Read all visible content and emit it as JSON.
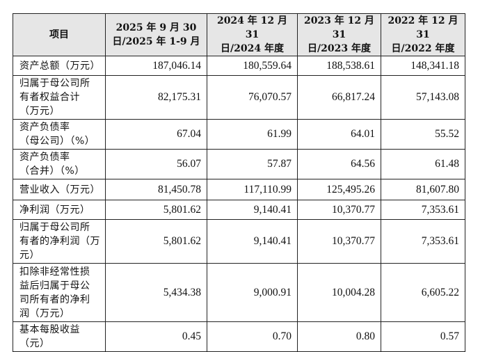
{
  "table": {
    "headers": {
      "item": "项目",
      "col1_line1": "2025 年 9 月 30",
      "col1_line2": "日/2025 年 1-9 月",
      "col2_line1": "2024 年 12 月 31",
      "col2_line2": "日/2024 年度",
      "col3_line1": "2023 年 12 月 31",
      "col3_line2": "日/2023 年度",
      "col4_line1": "2022 年 12 月 31",
      "col4_line2": "日/2022 年度"
    },
    "rows": [
      {
        "label_lines": [
          "资产总额（万元）"
        ],
        "values": [
          "187,046.14",
          "180,559.64",
          "188,538.61",
          "148,341.18"
        ]
      },
      {
        "label_lines": [
          "归属于母公司所",
          "有者权益合计",
          "（万元）"
        ],
        "values": [
          "82,175.31",
          "76,070.57",
          "66,817.24",
          "57,143.08"
        ]
      },
      {
        "label_lines": [
          "资产负债率",
          "（母公司）（%）"
        ],
        "values": [
          "67.04",
          "61.99",
          "64.01",
          "55.52"
        ]
      },
      {
        "label_lines": [
          "资产负债率",
          "（合并）（%）"
        ],
        "values": [
          "56.07",
          "57.87",
          "64.56",
          "61.48"
        ]
      },
      {
        "label_lines": [
          "营业收入（万元）"
        ],
        "values": [
          "81,450.78",
          "117,110.99",
          "125,495.26",
          "81,607.80"
        ]
      },
      {
        "label_lines": [
          "净利润（万元）"
        ],
        "values": [
          "5,801.62",
          "9,140.41",
          "10,370.77",
          "7,353.61"
        ]
      },
      {
        "label_lines": [
          "归属于母公司所",
          "有者的净利润（万",
          "元）"
        ],
        "values": [
          "5,801.62",
          "9,140.41",
          "10,370.77",
          "7,353.61"
        ]
      },
      {
        "label_lines": [
          "扣除非经常性损",
          "益后归属于母公",
          "司所有者的净利",
          "润（万元）"
        ],
        "values": [
          "5,434.38",
          "9,000.91",
          "10,004.28",
          "6,605.22"
        ]
      },
      {
        "label_lines": [
          "基本每股收益",
          "（元）"
        ],
        "values": [
          "0.45",
          "0.70",
          "0.80",
          "0.57"
        ]
      }
    ]
  }
}
